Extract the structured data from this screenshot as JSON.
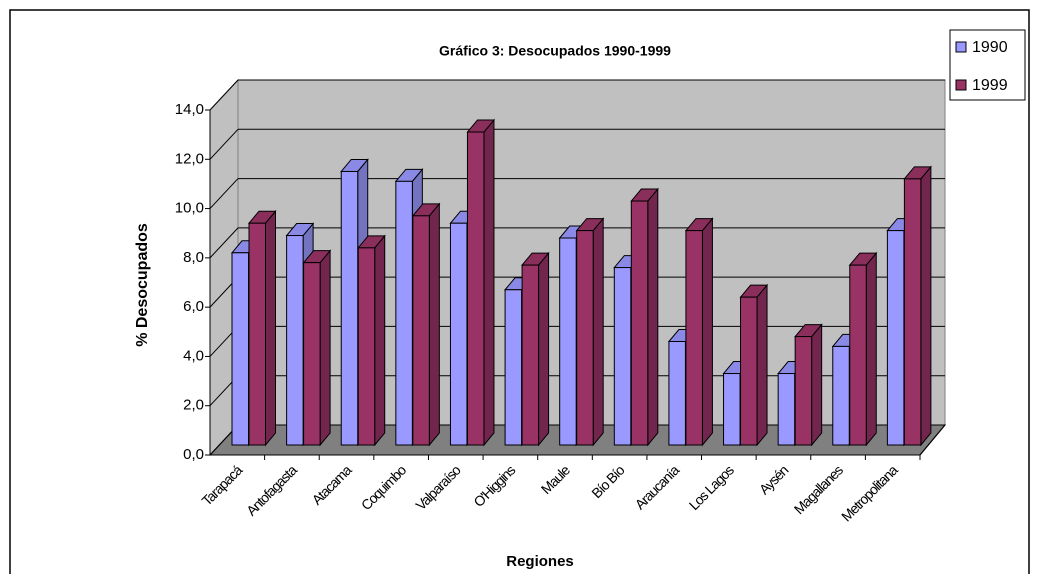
{
  "chart_data": {
    "type": "bar3d",
    "title": "Gráfico 3: Desocupados 1990-1999",
    "x_label": "Regiones",
    "y_label": "% Desocupados",
    "categories": [
      "Tarapacá",
      "Antofagasta",
      "Atacama",
      "Coquimbo",
      "Valparaíso",
      "O'Higgins",
      "Maule",
      "Bío Bío",
      "Araucanía",
      "Los Lagos",
      "Aysén",
      "Magallanes",
      "Metropolitana"
    ],
    "series": [
      {
        "name": "1990",
        "color": "#9999ff",
        "values": [
          7.8,
          8.5,
          11.1,
          10.7,
          9.0,
          6.3,
          8.4,
          7.2,
          4.2,
          2.9,
          2.9,
          4.0,
          8.7
        ]
      },
      {
        "name": "1999",
        "color": "#993366",
        "values": [
          9.0,
          7.4,
          8.0,
          9.3,
          12.7,
          7.3,
          8.7,
          9.9,
          8.7,
          6.0,
          4.4,
          7.3,
          10.8
        ]
      }
    ],
    "ylim": [
      0,
      14
    ],
    "yticks": [
      {
        "value": 0,
        "label": "0,0"
      },
      {
        "value": 2,
        "label": "2,0"
      },
      {
        "value": 4,
        "label": "4,0"
      },
      {
        "value": 6,
        "label": "6,0"
      },
      {
        "value": 8,
        "label": "8,0"
      },
      {
        "value": 10,
        "label": "10,0"
      },
      {
        "value": 12,
        "label": "12,0"
      },
      {
        "value": 14,
        "label": "14,0"
      }
    ],
    "grid": true,
    "legend": "top-right"
  }
}
